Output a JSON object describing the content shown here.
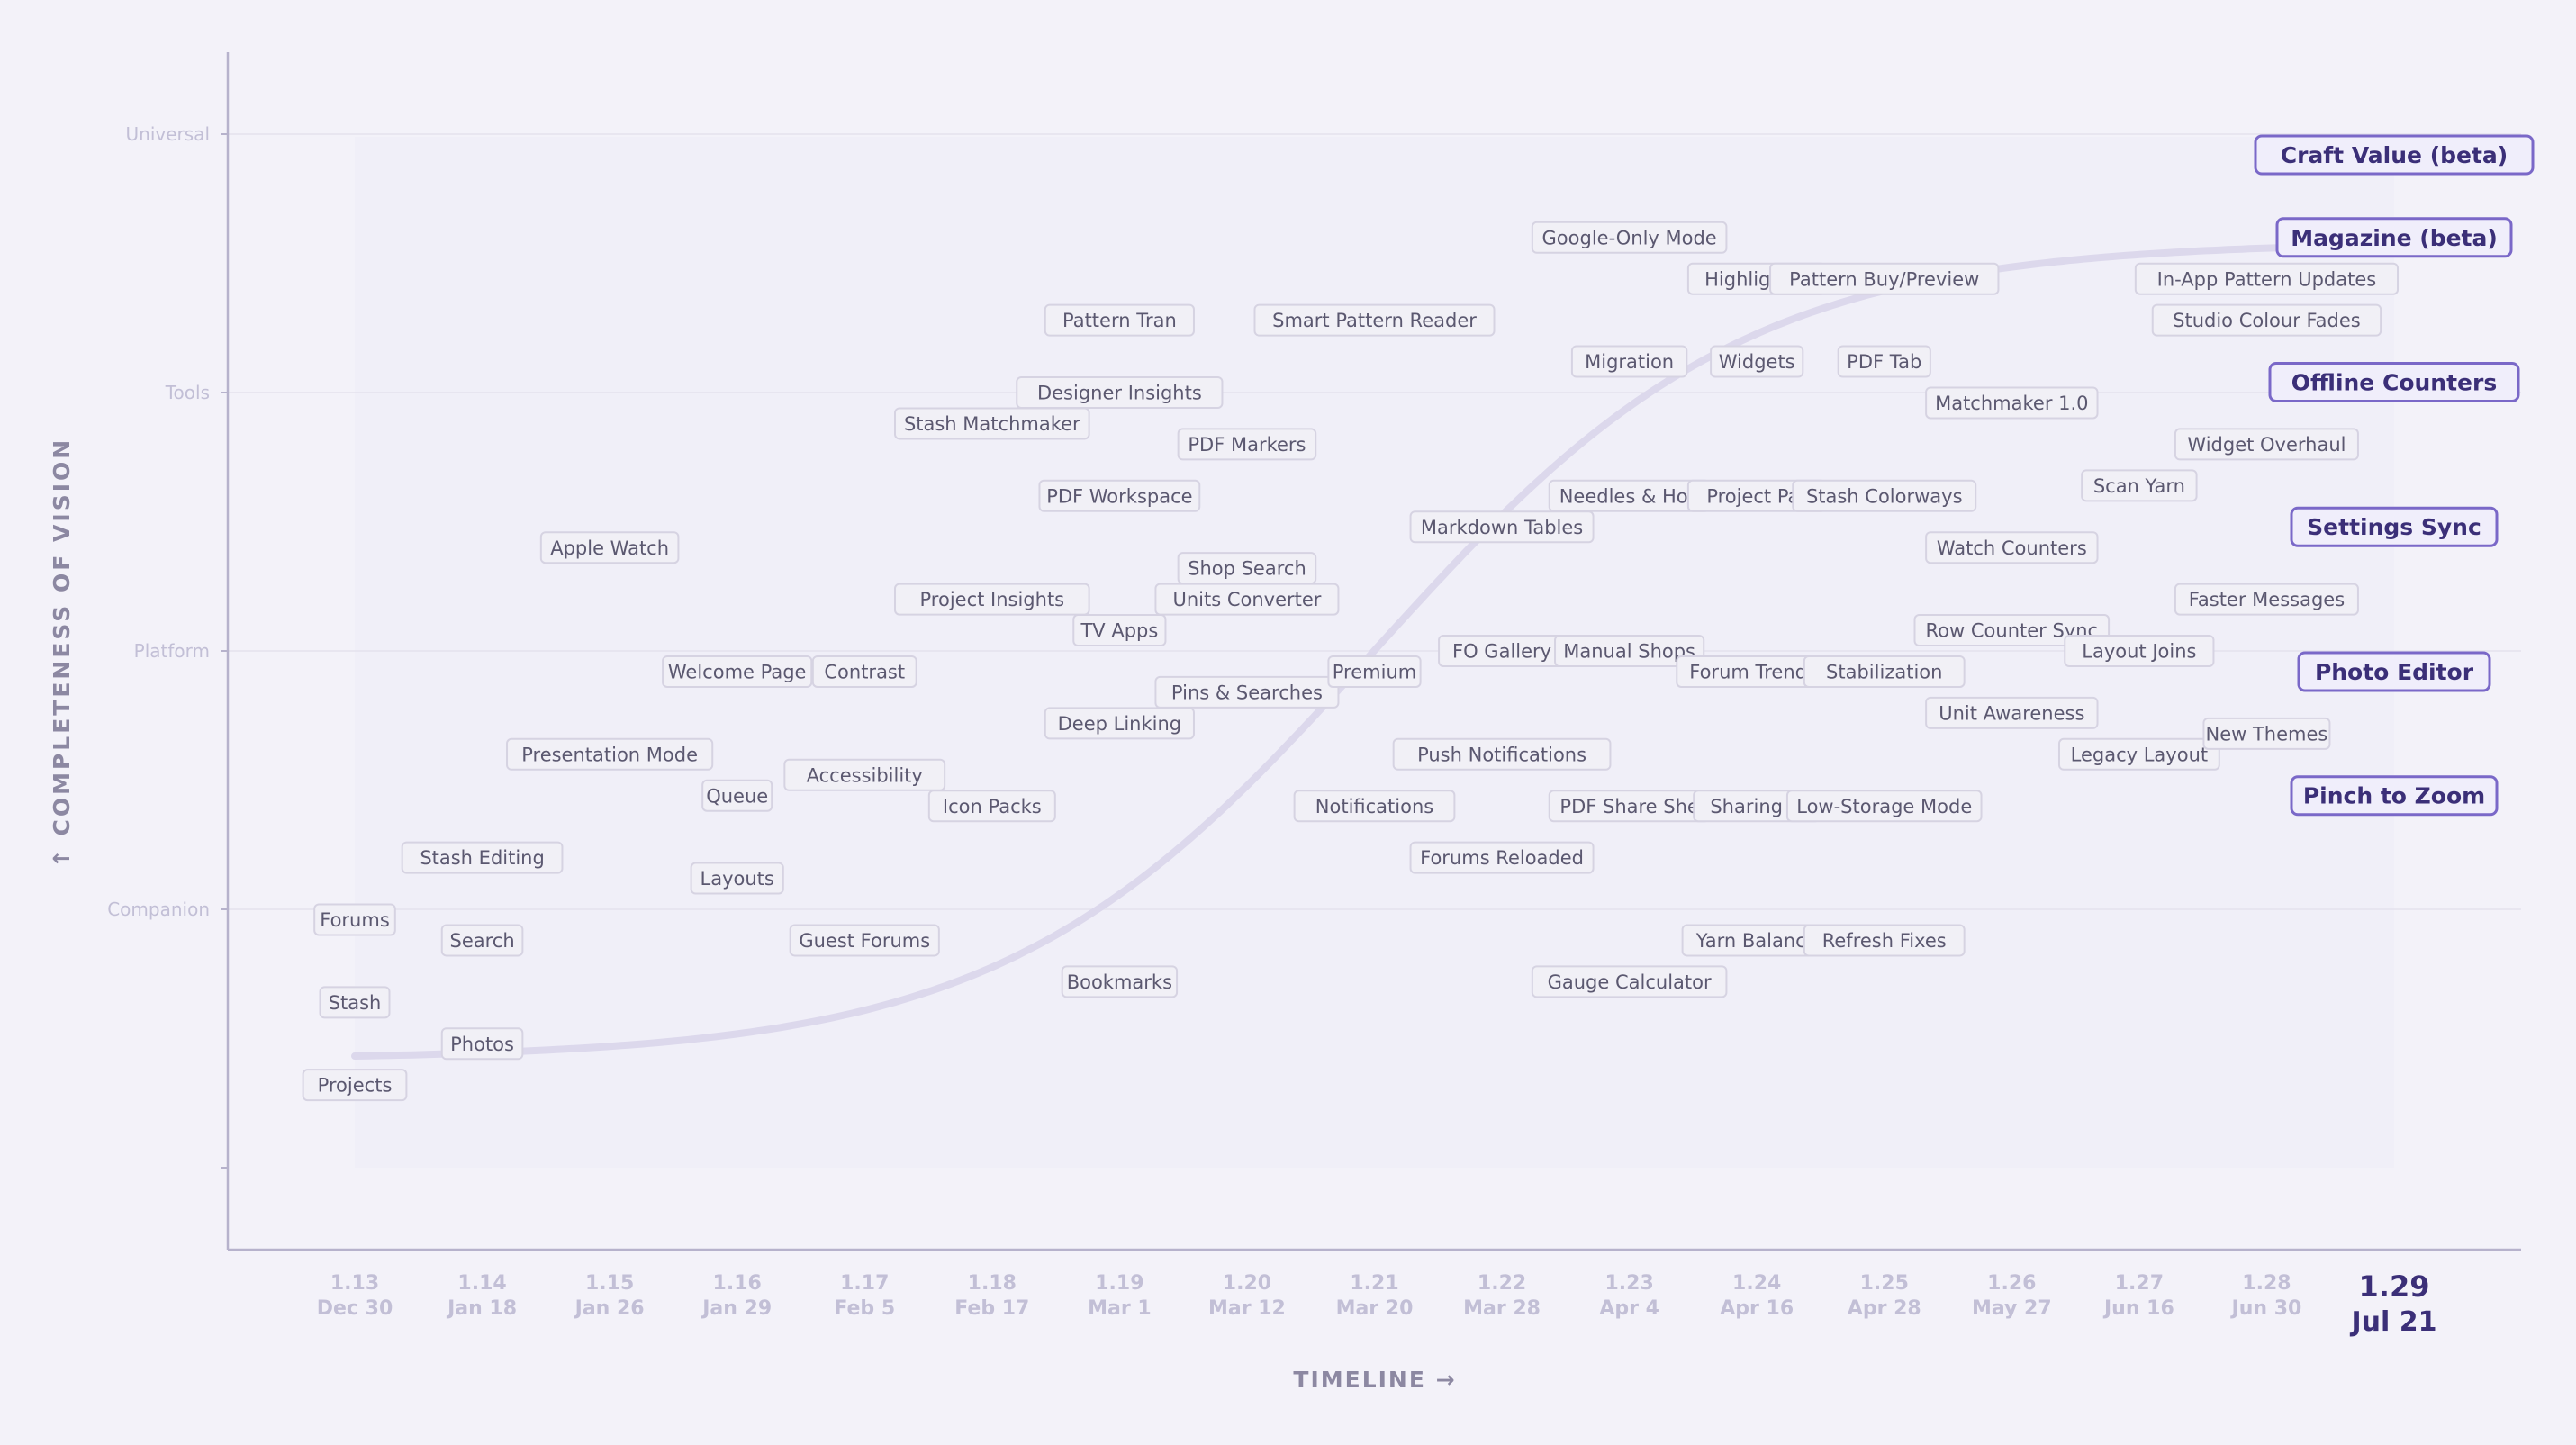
{
  "colors": {
    "background": "#f3f2f9",
    "axis": "#b6b2cc",
    "grid": "#e4e2ee",
    "curve": "#dcd8ec",
    "muted_text": "#c2bfd6",
    "axis_title": "#8c88a2",
    "feature_border": "#d6d3e2",
    "feature_fill": "#f1f0f6",
    "feature_text": "#5b5870",
    "highlight_border": "#7a68c8",
    "highlight_fill": "#f0eefb",
    "highlight_text": "#3b2f78"
  },
  "chart_data": {
    "type": "scatter",
    "title": "",
    "xlabel": "TIMELINE  →",
    "ylabel": "↑  COMPLETENESS  OF  VISION",
    "x_ticks": [
      {
        "version": "1.13",
        "date": "Dec 30"
      },
      {
        "version": "1.14",
        "date": "Jan 18"
      },
      {
        "version": "1.15",
        "date": "Jan 26"
      },
      {
        "version": "1.16",
        "date": "Jan 29"
      },
      {
        "version": "1.17",
        "date": "Feb 5"
      },
      {
        "version": "1.18",
        "date": "Feb 17"
      },
      {
        "version": "1.19",
        "date": "Mar 1"
      },
      {
        "version": "1.20",
        "date": "Mar 12"
      },
      {
        "version": "1.21",
        "date": "Mar 20"
      },
      {
        "version": "1.22",
        "date": "Mar 28"
      },
      {
        "version": "1.23",
        "date": "Apr 4"
      },
      {
        "version": "1.24",
        "date": "Apr 16"
      },
      {
        "version": "1.25",
        "date": "Apr 28"
      },
      {
        "version": "1.26",
        "date": "May 27"
      },
      {
        "version": "1.27",
        "date": "Jun 16"
      },
      {
        "version": "1.28",
        "date": "Jun 30"
      },
      {
        "version": "1.29",
        "date": "Jul 21",
        "current": true
      }
    ],
    "y_categories": [
      "Companion",
      "Platform",
      "Tools",
      "Universal"
    ],
    "y_range": [
      0,
      4.5
    ],
    "grid": true,
    "trend_curve": "sigmoid",
    "points": [
      {
        "label": "Projects",
        "x": "1.13",
        "y": 0.32
      },
      {
        "label": "Stash",
        "x": "1.13",
        "y": 0.64
      },
      {
        "label": "Forums",
        "x": "1.13",
        "y": 0.96
      },
      {
        "label": "Photos",
        "x": "1.14",
        "y": 0.48
      },
      {
        "label": "Search",
        "x": "1.14",
        "y": 0.88
      },
      {
        "label": "Stash Editing",
        "x": "1.14",
        "y": 1.2
      },
      {
        "label": "Presentation Mode",
        "x": "1.15",
        "y": 1.6
      },
      {
        "label": "Apple Watch",
        "x": "1.15",
        "y": 2.4
      },
      {
        "label": "Layouts",
        "x": "1.16",
        "y": 1.12
      },
      {
        "label": "Queue",
        "x": "1.16",
        "y": 1.44
      },
      {
        "label": "Welcome Page",
        "x": "1.16",
        "y": 1.92
      },
      {
        "label": "Guest Forums",
        "x": "1.17",
        "y": 0.88
      },
      {
        "label": "Accessibility",
        "x": "1.17",
        "y": 1.52
      },
      {
        "label": "Contrast",
        "x": "1.17",
        "y": 1.92
      },
      {
        "label": "Icon Packs",
        "x": "1.18",
        "y": 1.4
      },
      {
        "label": "Project Insights",
        "x": "1.18",
        "y": 2.2
      },
      {
        "label": "Stash Matchmaker",
        "x": "1.18",
        "y": 2.88
      },
      {
        "label": "Bookmarks",
        "x": "1.19",
        "y": 0.72
      },
      {
        "label": "Deep Linking",
        "x": "1.19",
        "y": 1.72
      },
      {
        "label": "TV Apps",
        "x": "1.19",
        "y": 2.08
      },
      {
        "label": "PDF Workspace",
        "x": "1.19",
        "y": 2.6
      },
      {
        "label": "Designer Insights",
        "x": "1.19",
        "y": 3.0
      },
      {
        "label": "Pins & Searches",
        "x": "1.20",
        "y": 1.84
      },
      {
        "label": "Units Converter",
        "x": "1.20",
        "y": 2.2
      },
      {
        "label": "Shop Search",
        "x": "1.20",
        "y": 2.32
      },
      {
        "label": "PDF Markers",
        "x": "1.20",
        "y": 2.8
      },
      {
        "label": "Pattern Tran",
        "x": "1.19",
        "y": 3.28
      },
      {
        "label": "Notifications",
        "x": "1.21",
        "y": 1.4
      },
      {
        "label": "Premium",
        "x": "1.21",
        "y": 1.92
      },
      {
        "label": "Smart Pattern Reader",
        "x": "1.21",
        "y": 3.28
      },
      {
        "label": "Forums Reloaded",
        "x": "1.22",
        "y": 1.2
      },
      {
        "label": "Push Notifications",
        "x": "1.22",
        "y": 1.6
      },
      {
        "label": "FO Gallery",
        "x": "1.22",
        "y": 2.0
      },
      {
        "label": "Markdown Tables",
        "x": "1.22",
        "y": 2.48
      },
      {
        "label": "Gauge Calculator",
        "x": "1.23",
        "y": 0.72
      },
      {
        "label": "PDF Share She",
        "x": "1.23",
        "y": 1.4
      },
      {
        "label": "Manual Shops",
        "x": "1.23",
        "y": 2.0
      },
      {
        "label": "Needles & Hoo",
        "x": "1.23",
        "y": 2.6
      },
      {
        "label": "Migration",
        "x": "1.23",
        "y": 3.12
      },
      {
        "label": "Google-Only Mode",
        "x": "1.23",
        "y": 3.6
      },
      {
        "label": "Yarn Balance",
        "x": "1.24",
        "y": 0.88
      },
      {
        "label": "Sharing Fi",
        "x": "1.24",
        "y": 1.4
      },
      {
        "label": "Forum Trendin",
        "x": "1.24",
        "y": 1.92
      },
      {
        "label": "Project Par",
        "x": "1.24",
        "y": 2.6
      },
      {
        "label": "Widgets",
        "x": "1.24",
        "y": 3.12
      },
      {
        "label": "Highlight C",
        "x": "1.24",
        "y": 3.44
      },
      {
        "label": "Refresh Fixes",
        "x": "1.25",
        "y": 0.88
      },
      {
        "label": "Low-Storage Mode",
        "x": "1.25",
        "y": 1.4
      },
      {
        "label": "Stabilization",
        "x": "1.25",
        "y": 1.92
      },
      {
        "label": "Stash Colorways",
        "x": "1.25",
        "y": 2.6
      },
      {
        "label": "PDF Tab",
        "x": "1.25",
        "y": 3.12
      },
      {
        "label": "Pattern Buy/Preview",
        "x": "1.25",
        "y": 3.44
      },
      {
        "label": "Unit Awareness",
        "x": "1.26",
        "y": 1.76
      },
      {
        "label": "Row Counter Sync",
        "x": "1.26",
        "y": 2.08
      },
      {
        "label": "Watch Counters",
        "x": "1.26",
        "y": 2.4
      },
      {
        "label": "Matchmaker 1.0",
        "x": "1.26",
        "y": 2.96
      },
      {
        "label": "Legacy Layout",
        "x": "1.27",
        "y": 1.6
      },
      {
        "label": "Layout Joins",
        "x": "1.27",
        "y": 2.0
      },
      {
        "label": "Scan Yarn",
        "x": "1.27",
        "y": 2.64
      },
      {
        "label": "New Themes",
        "x": "1.28",
        "y": 1.68
      },
      {
        "label": "Faster Messages",
        "x": "1.28",
        "y": 2.2
      },
      {
        "label": "Widget Overhaul",
        "x": "1.28",
        "y": 2.8
      },
      {
        "label": "Studio Colour Fades",
        "x": "1.28",
        "y": 3.28
      },
      {
        "label": "In-App Pattern Updates",
        "x": "1.28",
        "y": 3.44
      },
      {
        "label": "Pinch to Zoom",
        "x": "1.29",
        "y": 1.44,
        "highlight": true
      },
      {
        "label": "Photo Editor",
        "x": "1.29",
        "y": 1.92,
        "highlight": true
      },
      {
        "label": "Settings Sync",
        "x": "1.29",
        "y": 2.48,
        "highlight": true
      },
      {
        "label": "Offline Counters",
        "x": "1.29",
        "y": 3.04,
        "highlight": true
      },
      {
        "label": "Magazine (beta)",
        "x": "1.29",
        "y": 3.6,
        "highlight": true
      },
      {
        "label": "Craft Value (beta)",
        "x": "1.29",
        "y": 3.92,
        "highlight": true
      }
    ]
  }
}
